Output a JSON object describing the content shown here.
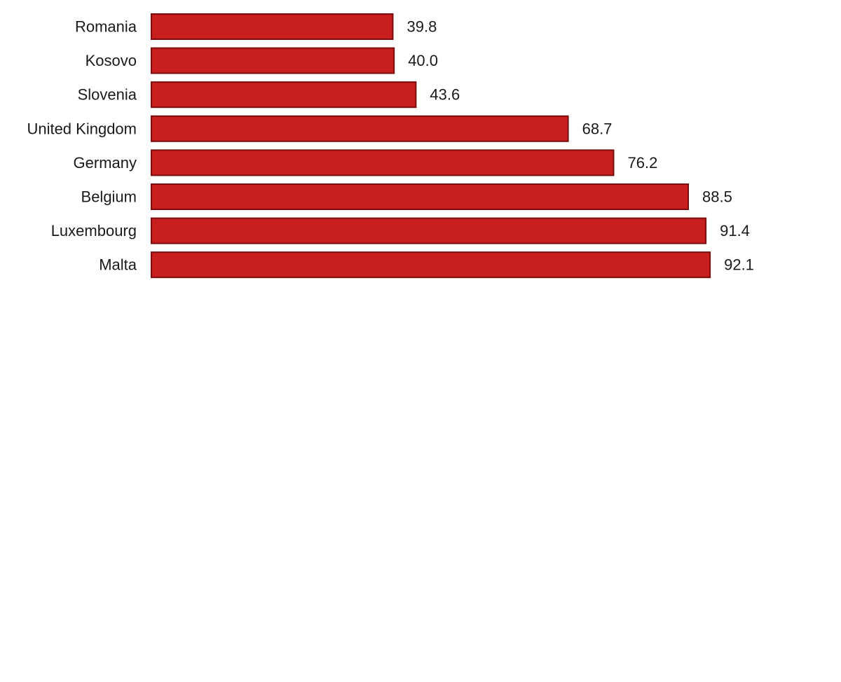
{
  "chart_data": {
    "type": "bar",
    "orientation": "horizontal",
    "title": "",
    "xlabel": "",
    "ylabel": "",
    "categories": [
      "Romania",
      "Kosovo",
      "Slovenia",
      "United Kingdom",
      "Germany",
      "Belgium",
      "Luxembourg",
      "Malta"
    ],
    "values": [
      39.8,
      40.0,
      43.6,
      68.7,
      76.2,
      88.5,
      91.4,
      92.1
    ],
    "value_labels": [
      "39.8",
      "40.0",
      "43.6",
      "68.7",
      "76.2",
      "88.5",
      "91.4",
      "92.1"
    ],
    "xlim": [
      0,
      100
    ],
    "grid": false,
    "legend": "none",
    "colors": {
      "bar_fill": "#c81e1e",
      "bar_stroke": "#7a0d0d",
      "text": "#1a1a1a"
    }
  }
}
